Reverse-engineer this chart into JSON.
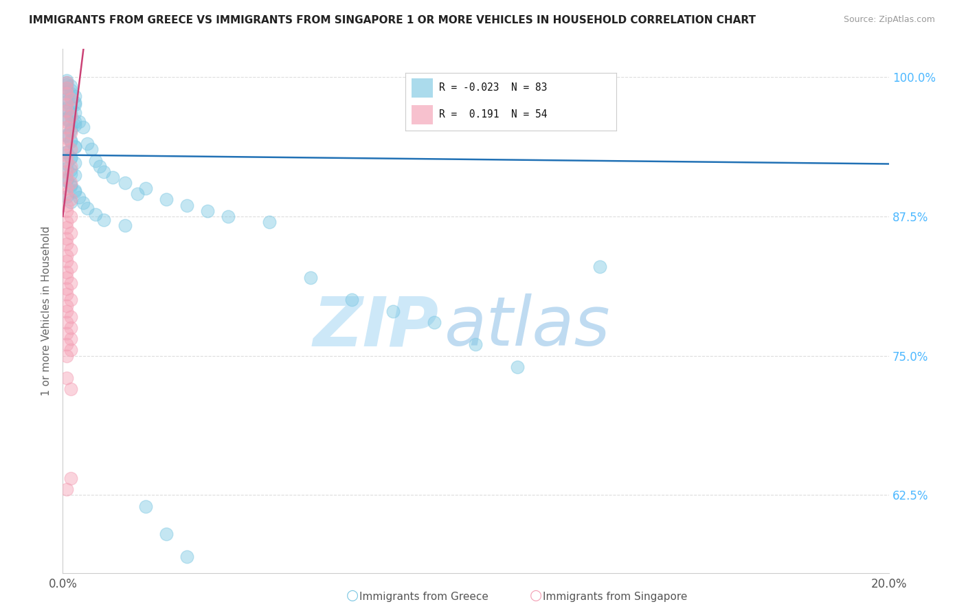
{
  "title": "IMMIGRANTS FROM GREECE VS IMMIGRANTS FROM SINGAPORE 1 OR MORE VEHICLES IN HOUSEHOLD CORRELATION CHART",
  "source": "Source: ZipAtlas.com",
  "ylabel": "1 or more Vehicles in Household",
  "xlim": [
    0.0,
    0.2
  ],
  "ylim": [
    0.555,
    1.025
  ],
  "ytick_values": [
    0.625,
    0.75,
    0.875,
    1.0
  ],
  "ytick_labels": [
    "62.5%",
    "75.0%",
    "87.5%",
    "100.0%"
  ],
  "xtick_values": [
    0.0,
    0.2
  ],
  "xtick_labels": [
    "0.0%",
    "20.0%"
  ],
  "greece_color": "#7ec8e3",
  "singapore_color": "#f4a0b5",
  "trendline_greece_color": "#2171b5",
  "trendline_singapore_color": "#cb4175",
  "greece_R": -0.023,
  "greece_N": 83,
  "singapore_R": 0.191,
  "singapore_N": 54,
  "right_yaxis_color": "#4db8ff",
  "watermark_zip_color": "#c8e6f8",
  "watermark_atlas_color": "#b8d8f0",
  "legend_label_greece": "R = -0.023  N = 83",
  "legend_label_singapore": "R =  0.191  N = 54",
  "bottom_legend_greece": "Immigrants from Greece",
  "bottom_legend_singapore": "Immigrants from Singapore",
  "greece_x": [
    0.001,
    0.002,
    0.001,
    0.003,
    0.001,
    0.002,
    0.003,
    0.001,
    0.002,
    0.001,
    0.002,
    0.003,
    0.001,
    0.002,
    0.001,
    0.003,
    0.002,
    0.001,
    0.002,
    0.003,
    0.001,
    0.002,
    0.003,
    0.001,
    0.002,
    0.001,
    0.002,
    0.003,
    0.001,
    0.002,
    0.004,
    0.005,
    0.006,
    0.007,
    0.008,
    0.009,
    0.01,
    0.012,
    0.015,
    0.018,
    0.02,
    0.025,
    0.03,
    0.035,
    0.04,
    0.05,
    0.06,
    0.07,
    0.08,
    0.09,
    0.1,
    0.11,
    0.13,
    0.001,
    0.002,
    0.001,
    0.002,
    0.003,
    0.001,
    0.002,
    0.001,
    0.003,
    0.002,
    0.001,
    0.002,
    0.003,
    0.001,
    0.002,
    0.001,
    0.002,
    0.003,
    0.001,
    0.002,
    0.003,
    0.004,
    0.005,
    0.006,
    0.008,
    0.01,
    0.015,
    0.02,
    0.025,
    0.03
  ],
  "greece_y": [
    0.99,
    0.985,
    0.98,
    0.975,
    0.97,
    0.965,
    0.96,
    0.995,
    0.988,
    0.978,
    0.973,
    0.968,
    0.963,
    0.958,
    0.993,
    0.983,
    0.953,
    0.948,
    0.943,
    0.938,
    0.933,
    0.928,
    0.923,
    0.918,
    0.913,
    0.908,
    0.903,
    0.898,
    0.893,
    0.888,
    0.96,
    0.955,
    0.94,
    0.935,
    0.925,
    0.92,
    0.915,
    0.91,
    0.905,
    0.895,
    0.9,
    0.89,
    0.885,
    0.88,
    0.875,
    0.87,
    0.82,
    0.8,
    0.79,
    0.78,
    0.76,
    0.74,
    0.83,
    0.997,
    0.992,
    0.987,
    0.982,
    0.977,
    0.972,
    0.967,
    0.962,
    0.957,
    0.952,
    0.947,
    0.942,
    0.937,
    0.932,
    0.927,
    0.922,
    0.917,
    0.912,
    0.907,
    0.902,
    0.897,
    0.892,
    0.887,
    0.882,
    0.877,
    0.872,
    0.867,
    0.615,
    0.59,
    0.57
  ],
  "singapore_x": [
    0.001,
    0.001,
    0.001,
    0.002,
    0.001,
    0.001,
    0.002,
    0.001,
    0.001,
    0.002,
    0.001,
    0.001,
    0.002,
    0.001,
    0.001,
    0.002,
    0.001,
    0.001,
    0.002,
    0.001,
    0.001,
    0.002,
    0.001,
    0.001,
    0.002,
    0.001,
    0.001,
    0.002,
    0.001,
    0.001,
    0.002,
    0.001,
    0.001,
    0.002,
    0.001,
    0.001,
    0.002,
    0.001,
    0.001,
    0.002,
    0.001,
    0.001,
    0.002,
    0.001,
    0.002,
    0.001,
    0.002,
    0.001,
    0.002,
    0.001,
    0.001,
    0.002,
    0.001,
    0.002
  ],
  "singapore_y": [
    0.995,
    0.99,
    0.985,
    0.98,
    0.975,
    0.97,
    0.965,
    0.96,
    0.955,
    0.95,
    0.945,
    0.94,
    0.935,
    0.93,
    0.925,
    0.92,
    0.915,
    0.91,
    0.905,
    0.9,
    0.895,
    0.89,
    0.885,
    0.88,
    0.875,
    0.87,
    0.865,
    0.86,
    0.855,
    0.85,
    0.845,
    0.84,
    0.835,
    0.83,
    0.825,
    0.82,
    0.815,
    0.81,
    0.805,
    0.8,
    0.795,
    0.79,
    0.785,
    0.78,
    0.775,
    0.77,
    0.765,
    0.76,
    0.755,
    0.75,
    0.73,
    0.64,
    0.63,
    0.72
  ]
}
